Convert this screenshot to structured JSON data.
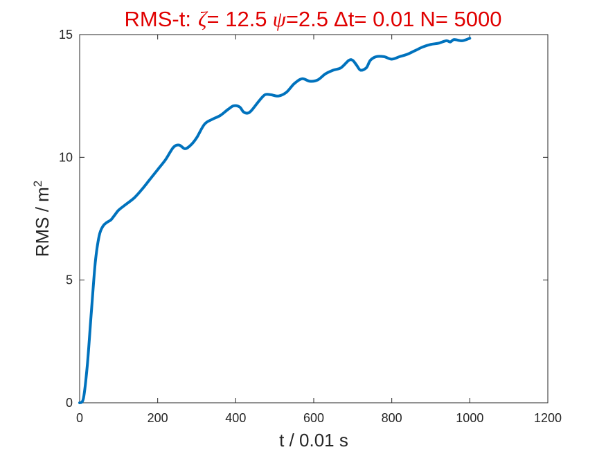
{
  "chart_data": {
    "type": "line",
    "title_prefix": "RMS-t:",
    "title_zeta_symbol": "ζ",
    "title_zeta_value": "= 12.5",
    "title_psi_symbol": "ψ",
    "title_psi_value": "=2.5",
    "title_dt": "Δt= 0.01",
    "title_n": "N= 5000",
    "xlabel": "t / 0.01 s",
    "ylabel_base": "RMS / m",
    "ylabel_sup": "2",
    "xlim": [
      0,
      1200
    ],
    "ylim": [
      0,
      15
    ],
    "xticks": [
      "0",
      "200",
      "400",
      "600",
      "800",
      "1000",
      "1200"
    ],
    "yticks": [
      "0",
      "5",
      "10",
      "15"
    ],
    "grid": false,
    "line_color": "#0072BD",
    "title_color": "#e00000",
    "series": [
      {
        "x": [
          0,
          10,
          20,
          30,
          40,
          50,
          60,
          70,
          80,
          90,
          100,
          120,
          140,
          160,
          180,
          200,
          220,
          240,
          255,
          270,
          285,
          300,
          320,
          340,
          360,
          380,
          395,
          410,
          420,
          430,
          440,
          460,
          475,
          490,
          510,
          530,
          550,
          570,
          590,
          610,
          630,
          650,
          670,
          690,
          700,
          710,
          720,
          735,
          745,
          760,
          780,
          800,
          820,
          840,
          860,
          880,
          900,
          920,
          940,
          950,
          960,
          980,
          1000
        ],
        "y": [
          0,
          0.2,
          1.6,
          3.7,
          5.7,
          6.8,
          7.2,
          7.35,
          7.45,
          7.65,
          7.85,
          8.1,
          8.35,
          8.7,
          9.1,
          9.5,
          9.9,
          10.4,
          10.5,
          10.35,
          10.5,
          10.8,
          11.35,
          11.55,
          11.7,
          11.95,
          12.1,
          12.05,
          11.85,
          11.8,
          11.9,
          12.3,
          12.55,
          12.55,
          12.5,
          12.65,
          13.0,
          13.2,
          13.1,
          13.15,
          13.4,
          13.55,
          13.65,
          13.95,
          13.95,
          13.75,
          13.55,
          13.65,
          13.95,
          14.1,
          14.1,
          14.0,
          14.1,
          14.2,
          14.35,
          14.5,
          14.6,
          14.65,
          14.75,
          14.7,
          14.8,
          14.75,
          14.85
        ]
      }
    ]
  }
}
